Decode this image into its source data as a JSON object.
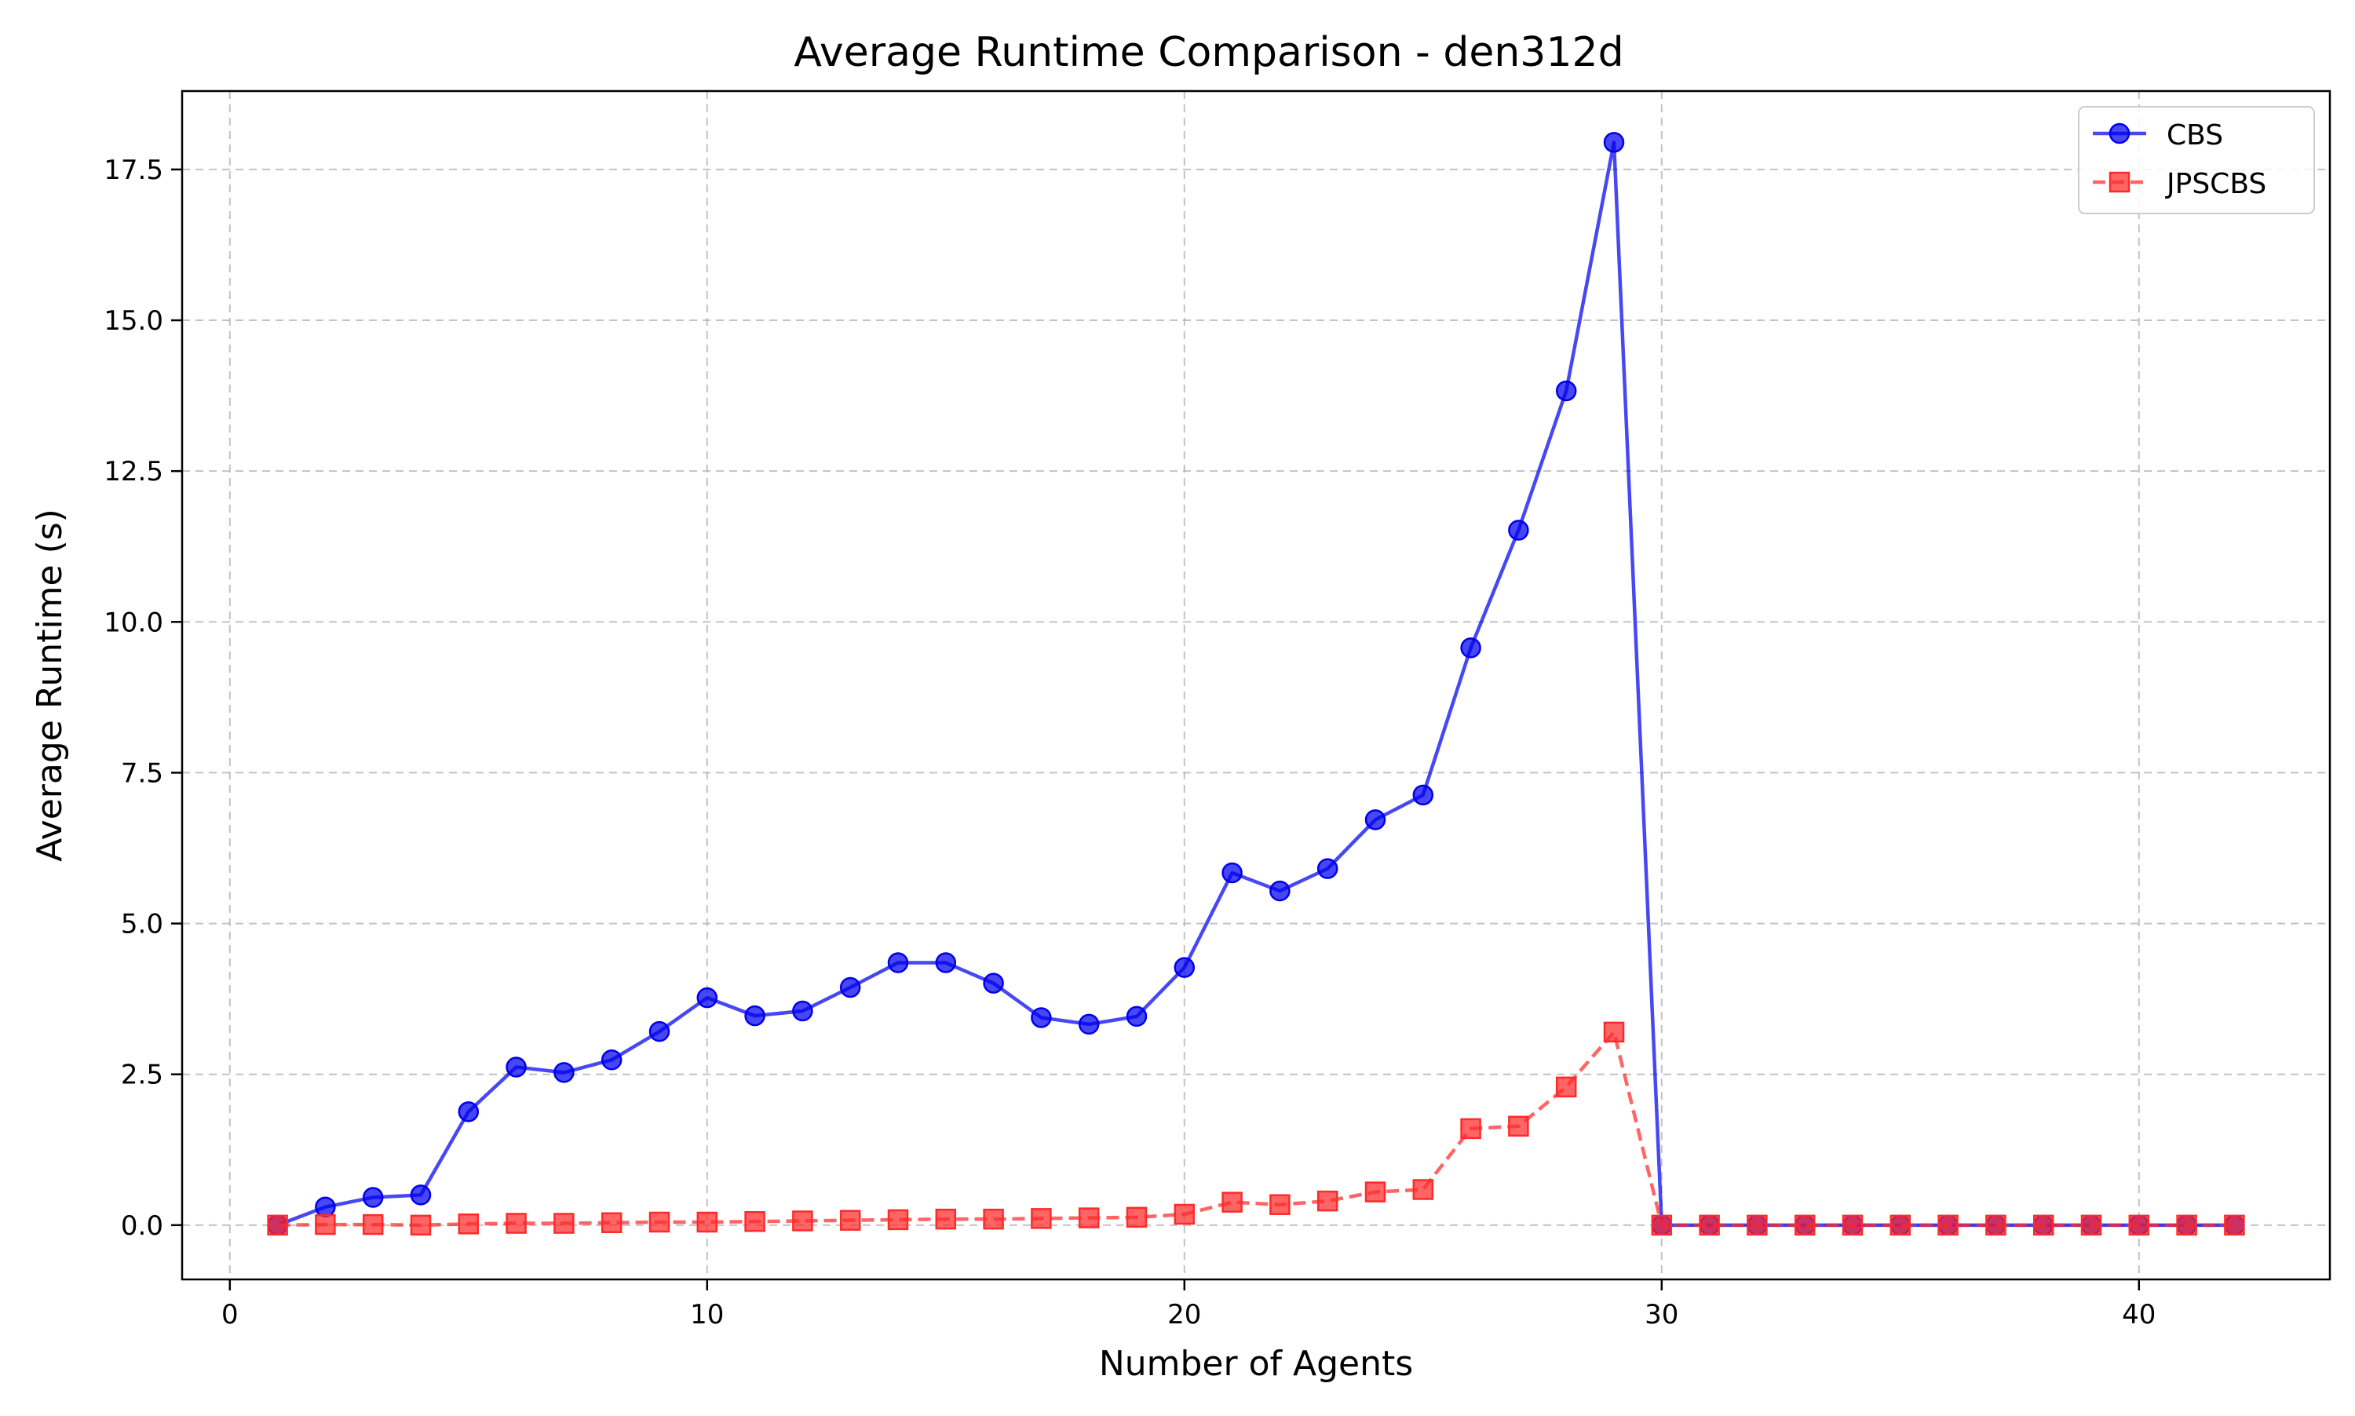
{
  "chart_data": {
    "type": "line",
    "title": "Average Runtime Comparison - den312d",
    "xlabel": "Number of Agents",
    "ylabel": "Average Runtime (s)",
    "xlim": [
      -1.0,
      44.0
    ],
    "ylim": [
      -0.9,
      18.8
    ],
    "xticks": [
      0,
      10,
      20,
      30,
      40
    ],
    "yticks": [
      0.0,
      2.5,
      5.0,
      7.5,
      10.0,
      12.5,
      15.0,
      17.5
    ],
    "ytick_labels": [
      "0.0",
      "2.5",
      "5.0",
      "7.5",
      "10.0",
      "12.5",
      "15.0",
      "17.5"
    ],
    "grid": true,
    "legend_position": "top-right",
    "x": [
      1,
      2,
      3,
      4,
      5,
      6,
      7,
      8,
      9,
      10,
      11,
      12,
      13,
      14,
      15,
      16,
      17,
      18,
      19,
      20,
      21,
      22,
      23,
      24,
      25,
      26,
      27,
      28,
      29,
      30,
      31,
      32,
      33,
      34,
      35,
      36,
      37,
      38,
      39,
      40,
      41,
      42
    ],
    "series": [
      {
        "name": "CBS",
        "color": "#0000ee",
        "marker": "circle",
        "linestyle": "solid",
        "values": [
          0.0,
          0.3,
          0.46,
          0.5,
          1.88,
          2.62,
          2.53,
          2.74,
          3.21,
          3.77,
          3.47,
          3.55,
          3.94,
          4.35,
          4.35,
          4.01,
          3.44,
          3.33,
          3.46,
          4.27,
          5.84,
          5.54,
          5.91,
          6.72,
          7.13,
          9.57,
          11.52,
          13.83,
          17.95,
          0.0,
          0.0,
          0.0,
          0.0,
          0.0,
          0.0,
          0.0,
          0.0,
          0.0,
          0.0,
          0.0,
          0.0,
          0.0
        ]
      },
      {
        "name": "JPSCBS",
        "color": "#ff2a2a",
        "marker": "square",
        "linestyle": "dashed",
        "values": [
          0.0,
          0.01,
          0.01,
          0.0,
          0.02,
          0.03,
          0.03,
          0.04,
          0.05,
          0.05,
          0.06,
          0.07,
          0.08,
          0.09,
          0.1,
          0.1,
          0.11,
          0.12,
          0.13,
          0.18,
          0.38,
          0.34,
          0.4,
          0.55,
          0.59,
          1.6,
          1.64,
          2.29,
          3.2,
          0.0,
          0.0,
          0.0,
          0.0,
          0.0,
          0.0,
          0.0,
          0.0,
          0.0,
          0.0,
          0.0,
          0.0,
          0.0
        ]
      }
    ]
  }
}
